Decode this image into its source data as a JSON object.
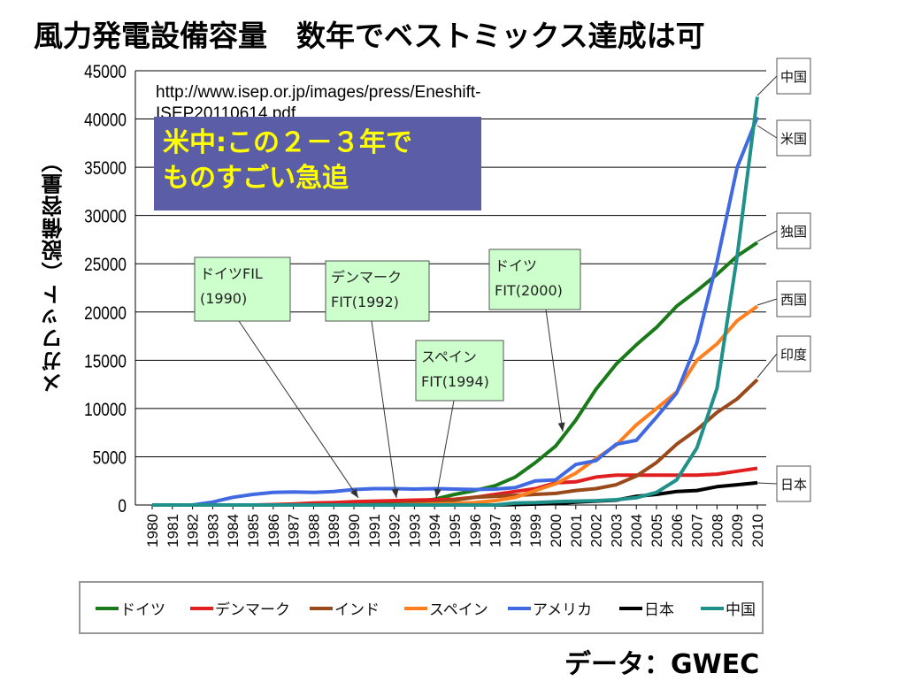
{
  "slide": {
    "title": "風力発電設備容量　数年でベストミックス達成は可",
    "source_url_line1": "http://www.isep.or.jp/images/press/Eneshift-",
    "source_url_line2": "ISEP20110614.pdf",
    "callout_line1": "米中:この２－３年で",
    "callout_line2": "ものすごい急追",
    "data_source": "データ：GWEC"
  },
  "colors": {
    "germany": "#1a7a1a",
    "denmark": "#e02020",
    "india": "#9a4a1a",
    "spain": "#ff7f1e",
    "usa": "#4169e1",
    "japan": "#000000",
    "china": "#20918a",
    "annotation_fill": "#ccffcc",
    "callout_fill": "#5b5ea6",
    "callout_text": "#ffff00"
  },
  "annotations": [
    {
      "line1": "ドイツFIL",
      "line2": "(1990)"
    },
    {
      "line1": "デンマーク",
      "line2": "FIT(1992)"
    },
    {
      "line1": "ドイツ",
      "line2": "FIT(2000)"
    },
    {
      "line1": "スペイン",
      "line2": "FIT(1994)"
    }
  ],
  "chart_data": {
    "type": "line",
    "title": "",
    "xlabel": "",
    "ylabel": "メガワット（設備容量）",
    "ylim": [
      0,
      45000
    ],
    "yticks": [
      0,
      5000,
      10000,
      15000,
      20000,
      25000,
      30000,
      35000,
      40000,
      45000
    ],
    "x": [
      1980,
      1981,
      1982,
      1983,
      1984,
      1985,
      1986,
      1987,
      1988,
      1989,
      1990,
      1991,
      1992,
      1993,
      1994,
      1995,
      1996,
      1997,
      1998,
      1999,
      2000,
      2001,
      2002,
      2003,
      2004,
      2005,
      2006,
      2007,
      2008,
      2009,
      2010
    ],
    "grid": true,
    "series": [
      {
        "name": "ドイツ",
        "key": "germany",
        "values": [
          0,
          0,
          0,
          0,
          0,
          0,
          0,
          0,
          0,
          0,
          100,
          150,
          200,
          300,
          600,
          1100,
          1500,
          2000,
          2900,
          4400,
          6100,
          8800,
          12000,
          14600,
          16600,
          18400,
          20600,
          22200,
          23900,
          25800,
          27200
        ]
      },
      {
        "name": "デンマーク",
        "key": "denmark",
        "values": [
          0,
          0,
          0,
          0,
          0,
          0,
          50,
          100,
          200,
          250,
          350,
          400,
          450,
          500,
          550,
          600,
          800,
          1100,
          1400,
          1700,
          2300,
          2400,
          2900,
          3100,
          3100,
          3100,
          3100,
          3100,
          3200,
          3500,
          3800
        ]
      },
      {
        "name": "インド",
        "key": "india",
        "values": [
          0,
          0,
          0,
          0,
          0,
          0,
          0,
          0,
          0,
          0,
          0,
          0,
          50,
          100,
          200,
          500,
          800,
          900,
          1000,
          1100,
          1200,
          1500,
          1700,
          2100,
          3000,
          4400,
          6300,
          7800,
          9600,
          11000,
          13000
        ]
      },
      {
        "name": "スペイン",
        "key": "spain",
        "values": [
          0,
          0,
          0,
          0,
          0,
          0,
          0,
          0,
          0,
          0,
          0,
          0,
          0,
          50,
          100,
          150,
          250,
          450,
          800,
          1500,
          2200,
          3300,
          4800,
          6200,
          8300,
          10000,
          11700,
          15000,
          16700,
          19100,
          20600
        ]
      },
      {
        "name": "アメリカ",
        "key": "usa",
        "values": [
          0,
          0,
          0,
          300,
          800,
          1100,
          1300,
          1350,
          1300,
          1400,
          1600,
          1700,
          1700,
          1650,
          1700,
          1650,
          1600,
          1650,
          1800,
          2500,
          2600,
          4200,
          4600,
          6300,
          6700,
          9100,
          11600,
          16800,
          25200,
          35000,
          40200
        ]
      },
      {
        "name": "日本",
        "key": "japan",
        "values": [
          0,
          0,
          0,
          0,
          0,
          0,
          0,
          0,
          0,
          0,
          0,
          0,
          0,
          0,
          0,
          0,
          0,
          0,
          50,
          100,
          150,
          300,
          400,
          500,
          900,
          1100,
          1400,
          1500,
          1900,
          2100,
          2300
        ]
      },
      {
        "name": "中国",
        "key": "china",
        "values": [
          0,
          0,
          0,
          0,
          0,
          0,
          0,
          0,
          0,
          0,
          0,
          0,
          0,
          0,
          0,
          0,
          0,
          0,
          200,
          250,
          350,
          400,
          450,
          550,
          750,
          1300,
          2600,
          5900,
          12100,
          25800,
          42300
        ]
      }
    ],
    "end_labels": [
      "中国",
      "米国",
      "独国",
      "西国",
      "印度",
      "日本"
    ]
  }
}
